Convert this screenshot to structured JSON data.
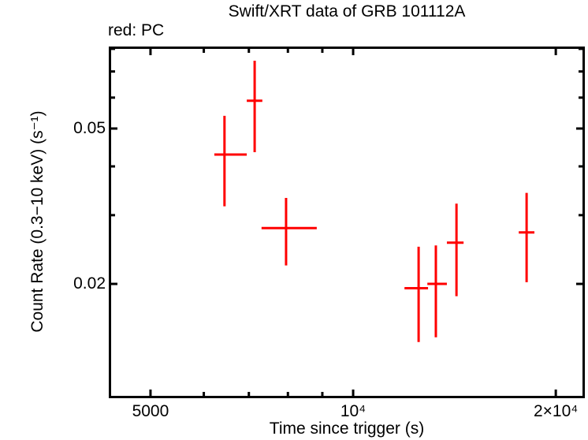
{
  "header": {
    "title": "Swift/XRT data of GRB 101112A",
    "mode_label": "red: PC"
  },
  "axes": {
    "xlabel": "Time since trigger (s)",
    "ylabel": "Count Rate (0.3−10 keV) (s⁻¹)"
  },
  "chart_data": {
    "type": "scatter",
    "title": "Swift/XRT data of GRB 101112A",
    "subtitle": "red: PC",
    "xlabel": "Time since trigger (s)",
    "ylabel": "Count Rate (0.3−10 keV) (s⁻¹)",
    "x_scale": "log",
    "y_scale": "log",
    "xlim": [
      4335,
      22090
    ],
    "ylim": [
      0.01024,
      0.0811
    ],
    "grid": false,
    "legend": "none",
    "series_name": "PC mode",
    "series_color": "#ff0000",
    "frame_color": "#000000",
    "x_major_ticks": [
      {
        "value": 5000,
        "label": "5000"
      },
      {
        "value": 10000,
        "label": "10⁴"
      },
      {
        "value": 20000,
        "label": "2×10⁴"
      }
    ],
    "x_minor_ticks": [
      6000,
      7000,
      8000,
      9000
    ],
    "y_major_ticks": [
      {
        "value": 0.05,
        "label": "0.05"
      },
      {
        "value": 0.02,
        "label": "0.02"
      }
    ],
    "y_minor_ticks": [
      0.03,
      0.04,
      0.06,
      0.07,
      0.08
    ],
    "points": [
      {
        "t": 6440,
        "t_lo": 6220,
        "t_hi": 6950,
        "rate": 0.0429,
        "rate_lo": 0.0316,
        "rate_hi": 0.0539
      },
      {
        "t": 7140,
        "t_lo": 6950,
        "t_hi": 7330,
        "rate": 0.0589,
        "rate_lo": 0.0435,
        "rate_hi": 0.0746
      },
      {
        "t": 7950,
        "t_lo": 7310,
        "t_hi": 8830,
        "rate": 0.0278,
        "rate_lo": 0.0223,
        "rate_hi": 0.0332
      },
      {
        "t": 12510,
        "t_lo": 11920,
        "t_hi": 12920,
        "rate": 0.0195,
        "rate_lo": 0.0142,
        "rate_hi": 0.0249
      },
      {
        "t": 13270,
        "t_lo": 12890,
        "t_hi": 13780,
        "rate": 0.02,
        "rate_lo": 0.0146,
        "rate_hi": 0.0251
      },
      {
        "t": 14240,
        "t_lo": 13780,
        "t_hi": 14590,
        "rate": 0.0255,
        "rate_lo": 0.0186,
        "rate_hi": 0.0321
      },
      {
        "t": 18100,
        "t_lo": 17620,
        "t_hi": 18590,
        "rate": 0.0271,
        "rate_lo": 0.0202,
        "rate_hi": 0.0342
      }
    ]
  }
}
